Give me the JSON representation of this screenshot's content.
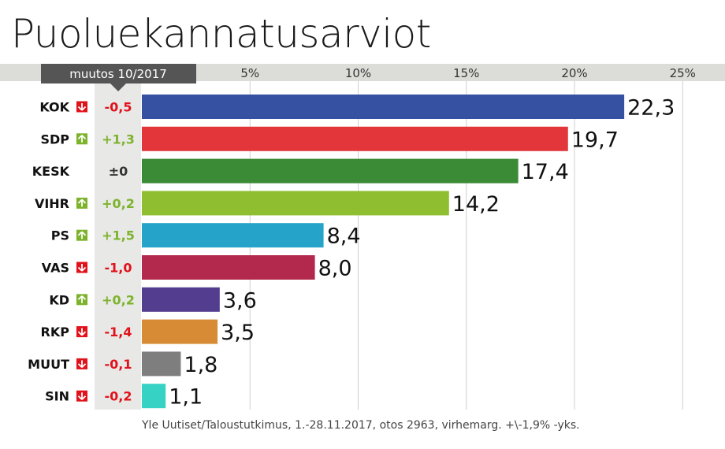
{
  "chart_data": {
    "type": "bar",
    "orientation": "horizontal",
    "title": "Puoluekannatusarviot",
    "change_header": "muutos 10/2017",
    "categories": [
      "KOK",
      "SDP",
      "KESK",
      "VIHR",
      "PS",
      "VAS",
      "KD",
      "RKP",
      "MUUT",
      "SIN"
    ],
    "values": [
      22.3,
      19.7,
      17.4,
      14.2,
      8.4,
      8.0,
      3.6,
      3.5,
      1.8,
      1.1
    ],
    "value_labels": [
      "22,3",
      "19,7",
      "17,4",
      "14,2",
      "8,4",
      "8,0",
      "3,6",
      "3,5",
      "1,8",
      "1,1"
    ],
    "changes": [
      "-0,5",
      "+1,3",
      "±0",
      "+0,2",
      "+1,5",
      "-1,0",
      "+0,2",
      "-1,4",
      "-0,1",
      "-0,2"
    ],
    "change_direction": [
      "down",
      "up",
      "none",
      "up",
      "up",
      "down",
      "up",
      "down",
      "down",
      "down"
    ],
    "bar_colors": [
      "#3650a2",
      "#e2363a",
      "#3b8a35",
      "#8fbe30",
      "#25a3c8",
      "#b3294d",
      "#523d8f",
      "#d68b34",
      "#7e7e7e",
      "#36d3c4"
    ],
    "change_colors": {
      "up": "#7db32c",
      "down": "#e0121b",
      "none": "#333333"
    },
    "xlim": [
      0,
      25
    ],
    "x_ticks": [
      5,
      10,
      15,
      20,
      25
    ],
    "x_tick_labels": [
      "5%",
      "10%",
      "15%",
      "20%",
      "25%"
    ],
    "grid": true,
    "source": "Yle Uutiset/Taloustutkimus, 1.-28.11.2017, otos 2963, virhemarg. +\\-1,9% -yks."
  }
}
